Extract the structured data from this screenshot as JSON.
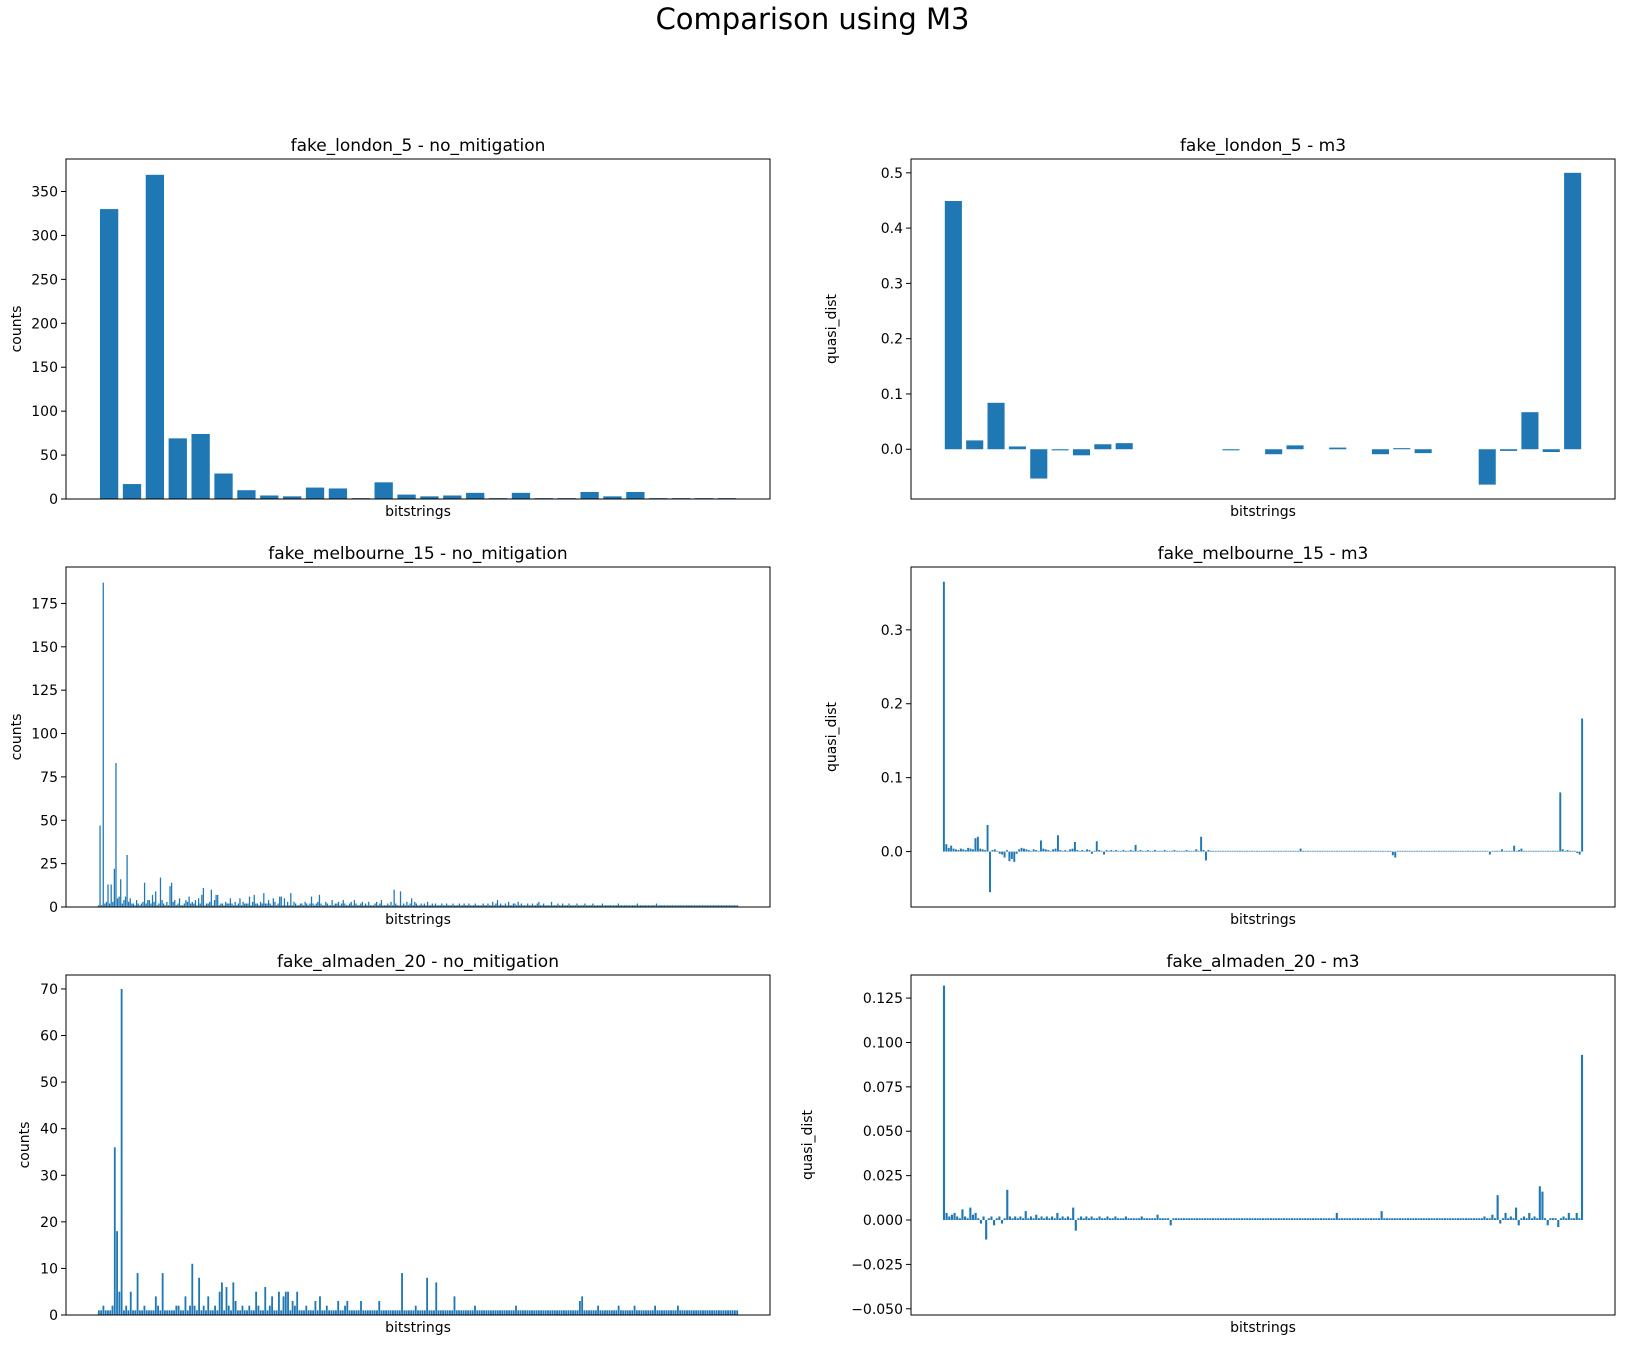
{
  "figure": {
    "title": "Comparison using M3",
    "bar_color": "#1f77b4"
  },
  "chart_data": [
    {
      "type": "bar",
      "title": "fake_london_5 - no_mitigation",
      "xlabel": "bitstrings",
      "ylabel": "counts",
      "ylim": [
        0,
        387
      ],
      "yticks": [
        0,
        50,
        100,
        150,
        200,
        250,
        300,
        350
      ],
      "ytick_labels": [
        "0",
        "50",
        "100",
        "150",
        "200",
        "250",
        "300",
        "350"
      ],
      "x_tick_labels": "hidden",
      "grid": false,
      "legend": "none",
      "values": [
        330,
        17,
        369,
        69,
        74,
        29,
        10,
        4,
        3,
        13,
        12,
        1,
        19,
        5,
        3,
        4,
        7,
        1,
        7,
        1,
        1,
        8,
        3,
        8,
        1,
        1,
        1,
        1
      ]
    },
    {
      "type": "bar",
      "title": "fake_london_5 - m3",
      "xlabel": "bitstrings",
      "ylabel": "quasi_dist",
      "ylim": [
        -0.09,
        0.525
      ],
      "yticks": [
        0.0,
        0.1,
        0.2,
        0.3,
        0.4,
        0.5
      ],
      "ytick_labels": [
        "0.0",
        "0.1",
        "0.2",
        "0.3",
        "0.4",
        "0.5"
      ],
      "x_tick_labels": "hidden",
      "grid": false,
      "legend": "none",
      "values": [
        0.449,
        0.016,
        0.084,
        0.005,
        -0.053,
        -0.002,
        -0.011,
        0.009,
        0.011,
        0.0,
        0.0,
        0.0,
        0.0,
        -0.002,
        0.0,
        -0.009,
        0.007,
        0.0,
        0.003,
        0.0,
        -0.009,
        0.002,
        -0.007,
        0.0,
        0.0,
        -0.064,
        -0.003,
        0.067,
        -0.005,
        0.5
      ]
    },
    {
      "type": "bar",
      "title": "fake_melbourne_15 - no_mitigation",
      "xlabel": "bitstrings",
      "ylabel": "counts",
      "ylim": [
        0,
        196
      ],
      "yticks": [
        0,
        25,
        50,
        75,
        100,
        125,
        150,
        175
      ],
      "ytick_labels": [
        "0",
        "25",
        "50",
        "75",
        "100",
        "125",
        "150",
        "175"
      ],
      "x_tick_labels": "hidden",
      "grid": false,
      "legend": "none",
      "values": [
        1,
        47,
        1,
        187,
        2,
        3,
        13,
        2,
        13,
        3,
        22,
        83,
        5,
        6,
        16,
        2,
        4,
        6,
        30,
        3,
        5,
        2,
        2,
        1,
        4,
        2,
        1,
        2,
        3,
        14,
        2,
        4,
        4,
        2,
        7,
        3,
        9,
        1,
        2,
        17,
        4,
        2,
        1,
        3,
        1,
        12,
        14,
        3,
        4,
        1,
        2,
        5,
        1,
        1,
        2,
        4,
        3,
        6,
        2,
        3,
        2,
        4,
        1,
        5,
        2,
        7,
        11,
        1,
        2,
        2,
        3,
        10,
        1,
        4,
        7,
        7,
        1,
        2,
        2,
        1,
        3,
        2,
        2,
        5,
        2,
        1,
        3,
        1,
        2,
        5,
        1,
        3,
        2,
        2,
        2,
        6,
        1,
        3,
        7,
        2,
        2,
        1,
        3,
        2,
        8,
        2,
        2,
        4,
        2,
        1,
        5,
        3,
        1,
        2,
        6,
        6,
        1,
        5,
        1,
        3,
        1,
        8,
        1,
        3,
        2,
        1,
        1,
        2,
        2,
        1,
        3,
        2,
        1,
        2,
        6,
        2,
        1,
        2,
        3,
        7,
        2,
        1,
        1,
        3,
        2,
        1,
        1,
        4,
        1,
        2,
        2,
        3,
        1,
        2,
        4,
        2,
        1,
        1,
        2,
        3,
        1,
        4,
        2,
        1,
        1,
        2,
        3,
        1,
        2,
        1,
        3,
        1,
        1,
        1,
        2,
        3,
        1,
        2,
        4,
        1,
        1,
        1,
        2,
        1,
        3,
        1,
        10,
        2,
        1,
        1,
        9,
        1,
        2,
        1,
        3,
        1,
        2,
        5,
        1,
        3,
        2,
        1,
        1,
        2,
        1,
        2,
        1,
        3,
        1,
        1,
        2,
        1,
        2,
        1,
        1,
        1,
        2,
        1,
        1,
        2,
        1,
        1,
        1,
        2,
        1,
        1,
        1,
        2,
        1,
        1,
        2,
        1,
        1,
        2,
        1,
        1,
        1,
        2,
        1,
        1,
        1,
        1,
        2,
        1,
        1,
        2,
        1,
        1,
        3,
        1,
        2,
        4,
        1,
        2,
        1,
        1,
        2,
        1,
        3,
        1,
        1,
        2,
        2,
        1,
        3,
        1,
        2,
        1,
        1,
        1,
        2,
        1,
        1,
        2,
        1,
        1,
        2,
        3,
        1,
        1,
        2,
        1,
        1,
        1,
        1,
        3,
        1,
        1,
        1,
        2,
        1,
        1,
        2,
        1,
        1,
        1,
        2,
        1,
        1,
        1,
        1,
        2,
        1,
        1,
        1,
        1,
        2,
        1,
        1,
        1,
        1,
        2,
        1,
        1,
        1,
        1,
        1,
        2,
        1,
        1,
        1,
        1,
        1,
        1,
        1,
        1,
        1,
        2,
        1,
        1,
        1,
        1,
        1,
        1,
        1,
        1,
        1,
        1,
        1,
        2,
        1,
        1,
        1,
        1,
        1,
        1,
        1,
        1,
        1,
        1,
        1,
        2,
        1,
        1,
        1,
        1,
        1,
        1,
        1,
        1,
        1,
        1,
        1,
        1,
        1,
        1,
        1,
        1,
        1,
        1,
        1,
        1,
        1,
        1,
        1,
        1,
        1,
        1,
        1,
        1,
        1,
        1,
        1,
        1,
        1,
        1,
        1,
        1,
        1,
        1,
        1,
        1,
        1,
        1,
        1,
        1,
        1,
        1,
        1,
        1,
        1,
        1,
        1
      ]
    },
    {
      "type": "bar",
      "title": "fake_melbourne_15 - m3",
      "xlabel": "bitstrings",
      "ylabel": "quasi_dist",
      "ylim": [
        -0.075,
        0.385
      ],
      "yticks": [
        0.0,
        0.1,
        0.2,
        0.3
      ],
      "ytick_labels": [
        "0.0",
        "0.1",
        "0.2",
        "0.3"
      ],
      "x_tick_labels": "hidden",
      "grid": false,
      "legend": "none",
      "values": [
        0.365,
        0.01,
        0.005,
        0.008,
        0.004,
        0.003,
        0.002,
        0.004,
        0.003,
        0.002,
        0.005,
        0.004,
        0.003,
        0.018,
        0.02,
        0.004,
        0.003,
        0.002,
        0.036,
        -0.055,
        0.002,
        0.003,
        0.001,
        -0.003,
        -0.004,
        -0.008,
        0.002,
        -0.013,
        -0.01,
        -0.014,
        -0.003,
        0.003,
        0.005,
        0.004,
        0.003,
        0.002,
        0.001,
        0.003,
        0.002,
        0.001,
        0.015,
        0.004,
        0.003,
        0.002,
        0.001,
        0.003,
        0.004,
        0.022,
        0.002,
        0.001,
        0.002,
        0.001,
        0.003,
        0.004,
        0.013,
        0.002,
        0.001,
        0.002,
        0.001,
        0.003,
        0.002,
        -0.003,
        0.001,
        0.014,
        0.002,
        0.001,
        -0.004,
        0.002,
        0.001,
        0.002,
        0.001,
        0.002,
        0.001,
        0.001,
        0.002,
        0.001,
        0.001,
        0.002,
        0.001,
        0.009,
        0.001,
        0.002,
        0.001,
        0.001,
        0.002,
        0.001,
        0.001,
        0.002,
        0.001,
        0.001,
        0.001,
        0.002,
        0.001,
        0.001,
        0.001,
        0.002,
        0.001,
        0.001,
        0.001,
        0.001,
        0.002,
        0.001,
        0.001,
        0.001,
        0.003,
        0.001,
        0.02,
        0.002,
        -0.012,
        0.002,
        0.001,
        0.001,
        0.001,
        0.001,
        0.001,
        0.001,
        0.001,
        0.001,
        0.001,
        0.001,
        0.001,
        0.001,
        0.001,
        0.001,
        0.001,
        0.001,
        0.001,
        0.001,
        0.001,
        0.001,
        0.001,
        0.001,
        0.001,
        0.001,
        0.001,
        0.001,
        0.001,
        0.001,
        0.001,
        0.001,
        0.001,
        0.001,
        0.001,
        0.001,
        0.001,
        0.001,
        0.001,
        0.004,
        0.001,
        0.001,
        0.001,
        0.001,
        0.001,
        0.001,
        0.001,
        0.001,
        0.001,
        0.001,
        0.001,
        0.001,
        0.001,
        0.001,
        0.001,
        0.001,
        0.001,
        0.001,
        0.001,
        0.001,
        0.001,
        0.001,
        0.001,
        0.001,
        0.001,
        0.001,
        0.001,
        0.001,
        0.001,
        0.001,
        0.001,
        0.001,
        0.001,
        0.001,
        0.001,
        0.001,
        0.001,
        -0.005,
        -0.008,
        0.001,
        0.001,
        0.001,
        0.001,
        0.001,
        0.001,
        0.001,
        0.001,
        0.001,
        0.001,
        0.001,
        0.001,
        0.001,
        0.001,
        0.001,
        0.001,
        0.001,
        0.001,
        0.001,
        0.001,
        0.001,
        0.001,
        0.001,
        0.001,
        0.001,
        0.001,
        0.001,
        0.001,
        0.001,
        0.001,
        0.001,
        0.001,
        0.001,
        0.001,
        0.001,
        0.001,
        0.001,
        0.001,
        -0.004,
        0.001,
        0.001,
        0.001,
        0.001,
        0.003,
        0.001,
        0.001,
        0.001,
        0.001,
        0.008,
        0.001,
        0.002,
        0.004,
        0.001,
        0.001,
        0.001,
        0.001,
        0.001,
        0.001,
        0.001,
        0.001,
        0.001,
        0.001,
        0.001,
        0.001,
        0.001,
        0.001,
        0.001,
        0.08,
        0.003,
        0.001,
        0.002,
        0.001,
        0.001,
        0.001,
        -0.002,
        -0.004,
        0.18
      ]
    },
    {
      "type": "bar",
      "title": "fake_almaden_20 - no_mitigation",
      "xlabel": "bitstrings",
      "ylabel": "counts",
      "ylim": [
        0,
        73
      ],
      "yticks": [
        0,
        10,
        20,
        30,
        40,
        50,
        60,
        70
      ],
      "ytick_labels": [
        "0",
        "10",
        "20",
        "30",
        "40",
        "50",
        "60",
        "70"
      ],
      "x_tick_labels": "hidden",
      "grid": false,
      "legend": "none",
      "values": [
        1,
        1,
        2,
        1,
        1,
        1,
        2,
        36,
        18,
        5,
        70,
        1,
        2,
        1,
        5,
        1,
        1,
        9,
        1,
        1,
        2,
        1,
        1,
        1,
        1,
        4,
        2,
        1,
        9,
        1,
        1,
        1,
        1,
        1,
        2,
        2,
        1,
        1,
        4,
        1,
        2,
        11,
        2,
        1,
        8,
        1,
        2,
        1,
        4,
        1,
        1,
        2,
        1,
        5,
        7,
        1,
        6,
        2,
        1,
        7,
        3,
        1,
        1,
        2,
        1,
        1,
        2,
        1,
        1,
        5,
        2,
        1,
        1,
        6,
        1,
        2,
        4,
        1,
        1,
        5,
        1,
        4,
        5,
        5,
        1,
        3,
        2,
        5,
        1,
        1,
        1,
        2,
        1,
        1,
        1,
        3,
        1,
        4,
        1,
        1,
        2,
        1,
        1,
        1,
        1,
        3,
        1,
        1,
        2,
        3,
        1,
        1,
        1,
        1,
        1,
        3,
        1,
        1,
        1,
        1,
        1,
        1,
        1,
        3,
        1,
        1,
        1,
        1,
        1,
        1,
        1,
        1,
        1,
        9,
        1,
        1,
        1,
        1,
        1,
        2,
        1,
        1,
        1,
        1,
        8,
        1,
        1,
        1,
        7,
        1,
        1,
        1,
        1,
        1,
        1,
        1,
        4,
        1,
        1,
        1,
        1,
        1,
        1,
        1,
        1,
        2,
        1,
        1,
        1,
        1,
        1,
        1,
        1,
        1,
        1,
        1,
        1,
        1,
        1,
        1,
        1,
        1,
        1,
        2,
        1,
        1,
        1,
        1,
        1,
        1,
        1,
        1,
        1,
        1,
        1,
        1,
        1,
        1,
        1,
        1,
        1,
        1,
        1,
        1,
        1,
        1,
        1,
        1,
        1,
        1,
        1,
        3,
        4,
        1,
        1,
        1,
        1,
        1,
        1,
        2,
        1,
        1,
        1,
        1,
        1,
        1,
        1,
        1,
        2,
        1,
        1,
        1,
        1,
        1,
        1,
        2,
        1,
        1,
        1,
        1,
        1,
        1,
        1,
        1,
        2,
        1,
        1,
        1,
        1,
        1,
        1,
        1,
        1,
        1,
        2,
        1,
        1,
        1,
        1,
        1,
        1,
        1,
        1,
        1,
        1,
        1,
        1,
        1,
        1,
        1,
        1,
        1,
        1,
        1,
        1,
        1,
        1,
        1,
        1,
        1,
        1
      ]
    },
    {
      "type": "bar",
      "title": "fake_almaden_20 - m3",
      "xlabel": "bitstrings",
      "ylabel": "quasi_dist",
      "ylim": [
        -0.0535,
        0.138
      ],
      "yticks": [
        -0.05,
        -0.025,
        0.0,
        0.025,
        0.05,
        0.075,
        0.1,
        0.125
      ],
      "ytick_labels": [
        "−0.050",
        "−0.025",
        "0.000",
        "0.025",
        "0.050",
        "0.075",
        "0.100",
        "0.125"
      ],
      "x_tick_labels": "hidden",
      "grid": false,
      "legend": "none",
      "values": [
        0.132,
        0.004,
        0.002,
        0.003,
        0.004,
        0.002,
        0.001,
        0.006,
        0.002,
        0.001,
        0.007,
        0.003,
        0.004,
        0.001,
        -0.002,
        0.002,
        -0.011,
        0.001,
        0.002,
        -0.003,
        0.001,
        0.002,
        -0.002,
        0.001,
        0.017,
        0.002,
        0.001,
        0.002,
        0.001,
        0.002,
        0.001,
        0.005,
        0.001,
        0.002,
        0.001,
        0.003,
        0.001,
        0.002,
        0.001,
        0.002,
        0.001,
        0.002,
        0.001,
        0.004,
        0.001,
        0.002,
        0.001,
        0.002,
        0.001,
        0.007,
        -0.006,
        0.001,
        0.002,
        0.001,
        0.002,
        0.001,
        0.002,
        0.001,
        0.001,
        0.002,
        0.001,
        0.001,
        0.002,
        0.001,
        0.001,
        0.002,
        0.001,
        0.001,
        0.001,
        0.002,
        0.001,
        0.001,
        0.001,
        0.001,
        0.001,
        0.002,
        0.001,
        0.001,
        0.001,
        0.001,
        0.001,
        0.003,
        0.001,
        0.001,
        0.001,
        0.001,
        -0.003,
        0.001,
        0.001,
        0.001,
        0.001,
        0.001,
        0.001,
        0.001,
        0.001,
        0.001,
        0.001,
        0.001,
        0.001,
        0.001,
        0.001,
        0.001,
        0.001,
        0.001,
        0.001,
        0.001,
        0.001,
        0.001,
        0.001,
        0.001,
        0.001,
        0.001,
        0.001,
        0.001,
        0.001,
        0.001,
        0.001,
        0.001,
        0.001,
        0.001,
        0.001,
        0.001,
        0.001,
        0.001,
        0.001,
        0.001,
        0.001,
        0.001,
        0.001,
        0.001,
        0.001,
        0.001,
        0.001,
        0.001,
        0.001,
        0.001,
        0.001,
        0.001,
        0.001,
        0.001,
        0.001,
        0.001,
        0.001,
        0.001,
        0.001,
        0.001,
        0.001,
        0.001,
        0.001,
        0.004,
        0.001,
        0.001,
        0.001,
        0.001,
        0.001,
        0.001,
        0.001,
        0.001,
        0.001,
        0.001,
        0.001,
        0.001,
        0.001,
        0.001,
        0.001,
        0.001,
        0.005,
        0.001,
        0.001,
        0.001,
        0.001,
        0.001,
        0.001,
        0.001,
        0.001,
        0.001,
        0.001,
        0.001,
        0.001,
        0.001,
        0.001,
        0.001,
        0.001,
        0.001,
        0.001,
        0.001,
        0.001,
        0.001,
        0.001,
        0.001,
        0.001,
        0.001,
        0.001,
        0.001,
        0.001,
        0.001,
        0.001,
        0.001,
        0.001,
        0.001,
        0.001,
        0.001,
        0.001,
        0.001,
        0.001,
        0.002,
        0.001,
        0.001,
        0.003,
        0.001,
        0.014,
        -0.002,
        0.001,
        0.004,
        0.001,
        0.002,
        0.001,
        0.007,
        -0.003,
        0.001,
        0.002,
        0.001,
        0.004,
        0.001,
        0.002,
        0.001,
        0.019,
        0.016,
        0.001,
        -0.003,
        0.001,
        0.001,
        0.001,
        -0.004,
        0.001,
        0.002,
        0.001,
        0.004,
        0.001,
        0.001,
        0.004,
        0.001,
        0.093
      ]
    }
  ]
}
